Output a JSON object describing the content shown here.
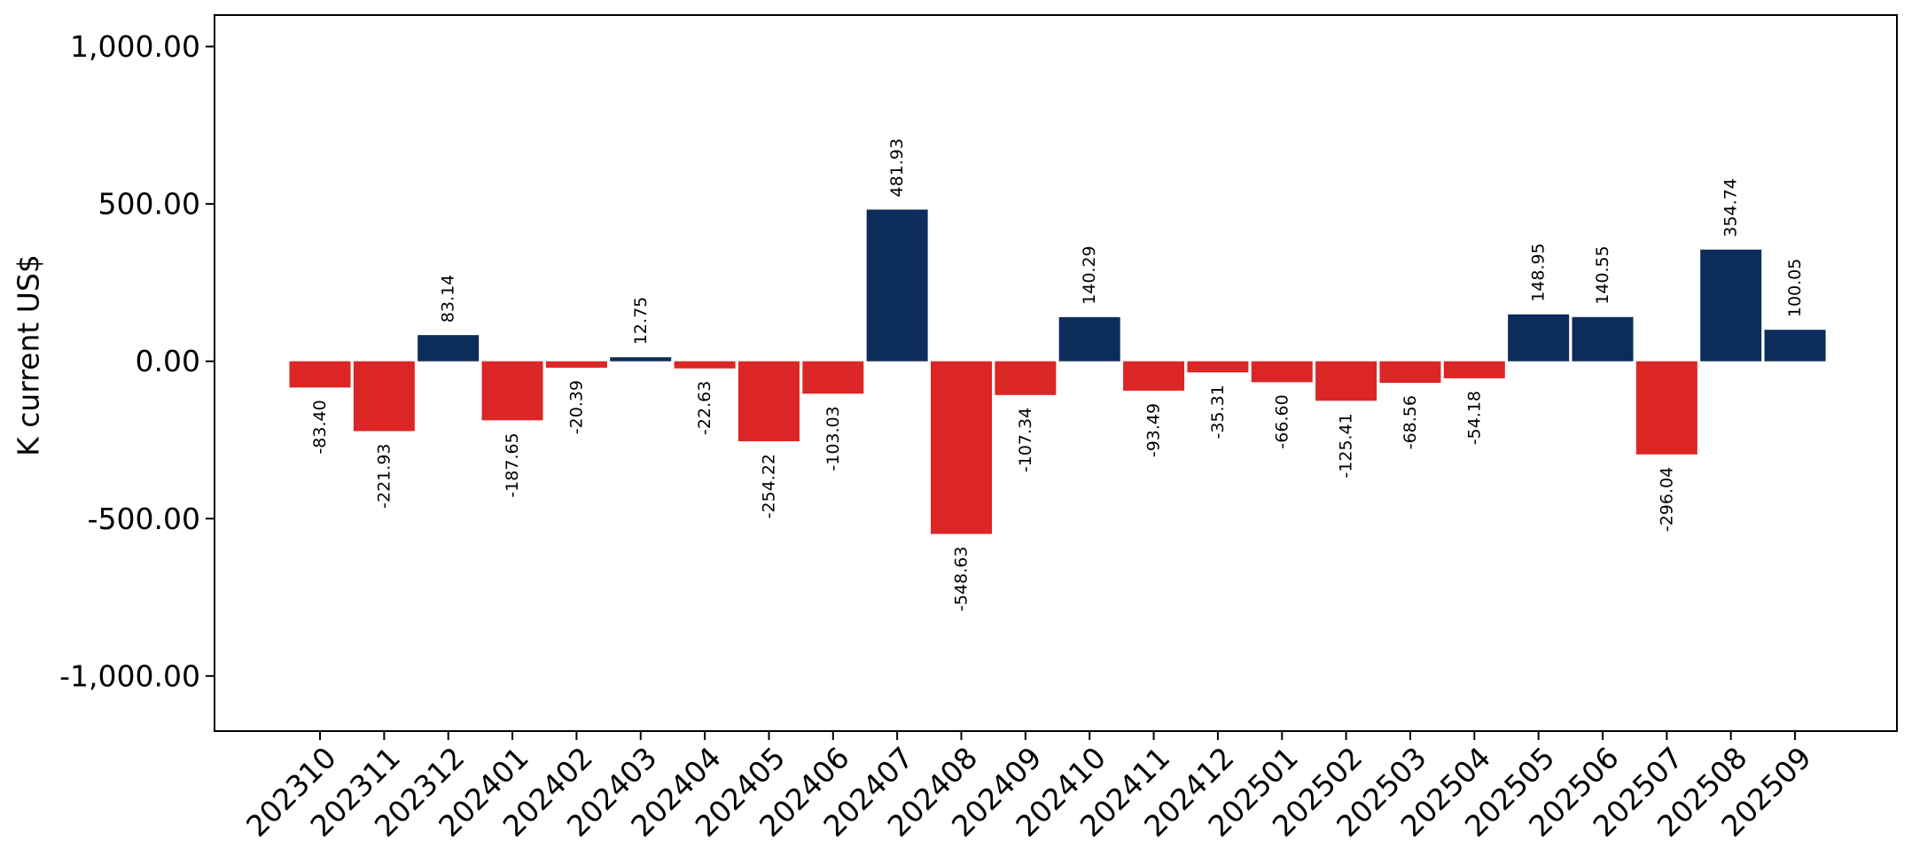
{
  "chart_data": {
    "type": "bar",
    "title": "",
    "xlabel": "",
    "ylabel": "K current US$",
    "ylim": [
      -1175,
      1100
    ],
    "yticks": [
      1000,
      500,
      0,
      -500,
      -1000
    ],
    "ytick_labels": [
      "1,000.00",
      "500.00",
      "0.00",
      "-500.00",
      "-1,000.00"
    ],
    "grid": false,
    "legend": "none",
    "colors": {
      "positive": "#0c2c5c",
      "negative": "#dc2626"
    },
    "categories": [
      "202310",
      "202311",
      "202312",
      "202401",
      "202402",
      "202403",
      "202404",
      "202405",
      "202406",
      "202407",
      "202408",
      "202409",
      "202410",
      "202411",
      "202412",
      "202501",
      "202502",
      "202503",
      "202504",
      "202505",
      "202506",
      "202507",
      "202508",
      "202509"
    ],
    "values": [
      -83.4,
      -221.93,
      83.14,
      -187.65,
      -20.39,
      12.75,
      -22.63,
      -254.22,
      -103.03,
      481.93,
      -548.63,
      -107.34,
      140.29,
      -93.49,
      -35.31,
      -66.6,
      -125.41,
      -68.56,
      -54.18,
      148.95,
      140.55,
      -296.04,
      354.74,
      100.05
    ],
    "data_labels": [
      "-83.40",
      "-221.93",
      "83.14",
      "-187.65",
      "-20.39",
      "12.75",
      "-22.63",
      "-254.22",
      "-103.03",
      "481.93",
      "-548.63",
      "-107.34",
      "140.29",
      "-93.49",
      "-35.31",
      "-66.60",
      "-125.41",
      "-68.56",
      "-54.18",
      "148.95",
      "140.55",
      "-296.04",
      "354.74",
      "100.05"
    ]
  }
}
